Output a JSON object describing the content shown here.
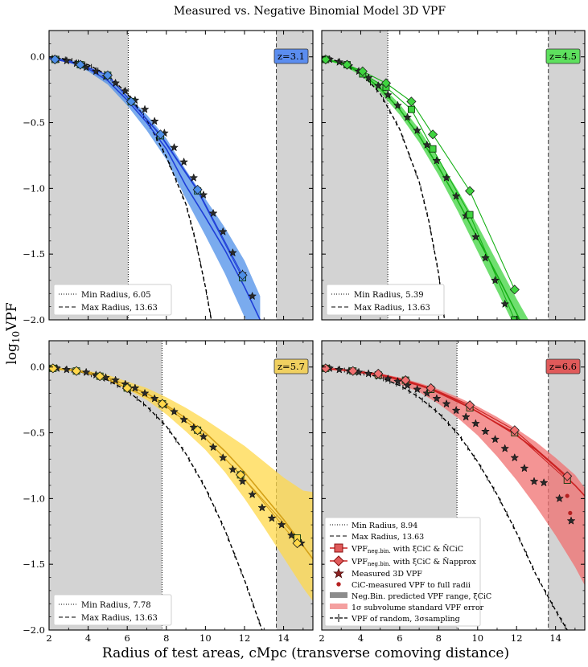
{
  "figure": {
    "title": "Measured vs. Negative Binomial Model 3D VPF",
    "xlabel": "Radius of test areas, cMpc (transverse comoving distance)",
    "ylabel_main": "log",
    "ylabel_sub": "10",
    "ylabel_tail": "VPF"
  },
  "legend_full": {
    "min_label": "Min Radius, 8.94",
    "max_label": "Max Radius, 13.63",
    "negbin_cic_main": "VPF",
    "negbin_cic_sub": "neg.bin.",
    "negbin_cic_tail": " with ξ̄CiC & N̄CiC",
    "negbin_approx_main": "VPF",
    "negbin_approx_sub": "neg.bin.",
    "negbin_approx_tail": " with ξ̄CiC & N̄approx",
    "measured": "Measured 3D VPF",
    "cic_full": "CiC-measured VPF to full radii",
    "range": "Neg.Bin. predicted VPF range, ξ̄CiC",
    "subvol": "1σ subvolume standard VPF error",
    "random": "VPF of random, 3σsampling"
  },
  "colors": {
    "z3.1": "#1f3fd8",
    "z3.1_fill": "#4d8fe8",
    "z3.1_label": "#5b8def",
    "z4.5": "#16b016",
    "z4.5_fill": "#3fd43f",
    "z4.5_label": "#5ee05e",
    "z5.7": "#d4a017",
    "z5.7_fill": "#ffd84a",
    "z5.7_label": "#f0d060",
    "z6.6": "#cc2222",
    "z6.6_fill": "#f07070",
    "z6.6_label": "#e05a5a",
    "shade": "#d3d3d3"
  },
  "chart_data": [
    {
      "type": "line",
      "panel": "top-left",
      "redshift_label": "z=3.1",
      "xlim": [
        2,
        15.5
      ],
      "ylim": [
        -2.0,
        0.2
      ],
      "xticks": [
        "2",
        "4",
        "6",
        "8",
        "10",
        "12",
        "14"
      ],
      "yticks": [
        "0.0",
        "−0.5",
        "−1.0",
        "−1.5",
        "−2.0"
      ],
      "min_radius": 6.05,
      "max_radius": 13.63,
      "legend": {
        "min_label": "Min Radius, 6.05",
        "max_label": "Max Radius, 13.63"
      },
      "show_left_ticks": true,
      "show_bottom_ticks": false,
      "random_curve": {
        "x": [
          2,
          3,
          4,
          5,
          6,
          7,
          8,
          9,
          9.5,
          10,
          10.3
        ],
        "y": [
          0,
          -0.02,
          -0.06,
          -0.14,
          -0.28,
          -0.48,
          -0.76,
          -1.12,
          -1.4,
          -1.75,
          -2.0
        ]
      },
      "model_line": {
        "x": [
          2,
          3,
          4,
          5,
          6,
          7,
          8,
          9,
          10,
          11,
          12,
          12.8
        ],
        "y": [
          -0.01,
          -0.03,
          -0.09,
          -0.18,
          -0.33,
          -0.5,
          -0.7,
          -0.98,
          -1.22,
          -1.47,
          -1.75,
          -2.0
        ]
      },
      "band_upper": [
        0,
        -0.02,
        -0.07,
        -0.15,
        -0.29,
        -0.44,
        -0.62,
        -0.86,
        -1.08,
        -1.3,
        -1.55,
        -1.82
      ],
      "band_lower": [
        -0.02,
        -0.04,
        -0.11,
        -0.21,
        -0.37,
        -0.56,
        -0.78,
        -1.08,
        -1.36,
        -1.65,
        -1.98,
        -2.2
      ],
      "squares": {
        "x": [
          2.3,
          3.6,
          5.0,
          6.2,
          7.7,
          9.6,
          11.9
        ],
        "y": [
          -0.02,
          -0.06,
          -0.14,
          -0.34,
          -0.6,
          -1.02,
          -1.68
        ]
      },
      "diamonds": {
        "x": [
          2.3,
          3.6,
          5.0,
          6.2,
          7.7,
          9.6,
          11.9
        ],
        "y": [
          -0.02,
          -0.06,
          -0.14,
          -0.34,
          -0.59,
          -1.01,
          -1.66
        ]
      },
      "stars": {
        "x": [
          2.4,
          2.9,
          3.4,
          3.9,
          4.4,
          4.9,
          5.4,
          5.9,
          6.4,
          6.9,
          7.4,
          7.9,
          8.4,
          8.9,
          9.4,
          9.9,
          10.4,
          10.9,
          11.4,
          11.9,
          12.4
        ],
        "y": [
          -0.02,
          -0.03,
          -0.05,
          -0.08,
          -0.11,
          -0.15,
          -0.2,
          -0.26,
          -0.33,
          -0.4,
          -0.49,
          -0.58,
          -0.69,
          -0.8,
          -0.92,
          -1.05,
          -1.19,
          -1.33,
          -1.49,
          -1.65,
          -1.82
        ]
      },
      "cic_points": {
        "x": [],
        "y": []
      }
    },
    {
      "type": "line",
      "panel": "top-right",
      "redshift_label": "z=4.5",
      "xlim": [
        2,
        15.5
      ],
      "ylim": [
        -2.0,
        0.2
      ],
      "xticks": [
        "2",
        "4",
        "6",
        "8",
        "10",
        "12",
        "14"
      ],
      "yticks": [
        "0.0",
        "−0.5",
        "−1.0",
        "−1.5",
        "−2.0"
      ],
      "min_radius": 5.39,
      "max_radius": 13.63,
      "legend": {
        "min_label": "Min Radius, 5.39",
        "max_label": "Max Radius, 13.63"
      },
      "show_left_ticks": false,
      "show_bottom_ticks": false,
      "random_curve": {
        "x": [
          2,
          3,
          4,
          5,
          6,
          7,
          7.5,
          8,
          8.3
        ],
        "y": [
          0,
          -0.04,
          -0.12,
          -0.28,
          -0.55,
          -0.95,
          -1.25,
          -1.65,
          -2.0
        ]
      },
      "model_line": {
        "x": [
          2,
          3,
          4,
          5,
          6,
          7,
          8,
          9,
          10,
          11,
          12,
          13
        ],
        "y": [
          -0.01,
          -0.05,
          -0.12,
          -0.24,
          -0.4,
          -0.6,
          -0.84,
          -1.1,
          -1.38,
          -1.66,
          -1.95,
          -2.25
        ]
      },
      "band_upper": [
        0,
        -0.04,
        -0.1,
        -0.21,
        -0.36,
        -0.55,
        -0.78,
        -1.02,
        -1.28,
        -1.56,
        -1.84,
        -2.1
      ],
      "band_lower": [
        -0.02,
        -0.06,
        -0.14,
        -0.27,
        -0.44,
        -0.65,
        -0.9,
        -1.18,
        -1.48,
        -1.78,
        -2.08,
        -2.4
      ],
      "squares": {
        "x": [
          2.2,
          3.3,
          4.1,
          5.3,
          6.6,
          7.7,
          9.6,
          11.9
        ],
        "y": [
          -0.02,
          -0.06,
          -0.13,
          -0.23,
          -0.4,
          -0.7,
          -1.2,
          -2.0
        ]
      },
      "diamonds": {
        "x": [
          2.2,
          3.3,
          4.1,
          5.3,
          6.6,
          7.7,
          9.6,
          11.9
        ],
        "y": [
          -0.02,
          -0.06,
          -0.11,
          -0.2,
          -0.34,
          -0.59,
          -1.02,
          -1.77
        ]
      },
      "stars": {
        "x": [
          2.4,
          2.9,
          3.4,
          3.9,
          4.4,
          4.9,
          5.4,
          5.9,
          6.4,
          6.9,
          7.4,
          7.9,
          8.4,
          8.9,
          9.4,
          9.9,
          10.4,
          10.9,
          11.4,
          11.9
        ],
        "y": [
          -0.02,
          -0.04,
          -0.07,
          -0.11,
          -0.16,
          -0.22,
          -0.29,
          -0.37,
          -0.46,
          -0.56,
          -0.67,
          -0.79,
          -0.92,
          -1.06,
          -1.21,
          -1.37,
          -1.53,
          -1.7,
          -1.88,
          -2.0
        ]
      },
      "cic_points": {
        "x": [],
        "y": []
      }
    },
    {
      "type": "line",
      "panel": "bottom-left",
      "redshift_label": "z=5.7",
      "xlim": [
        2,
        15.5
      ],
      "ylim": [
        -2.0,
        0.2
      ],
      "xticks": [
        "2",
        "4",
        "6",
        "8",
        "10",
        "12",
        "14"
      ],
      "yticks": [
        "0.0",
        "−0.5",
        "−1.0",
        "−1.5",
        "−2.0"
      ],
      "min_radius": 7.78,
      "max_radius": 13.63,
      "legend": {
        "min_label": "Min Radius, 7.78",
        "max_label": "Max Radius, 13.63"
      },
      "show_left_ticks": true,
      "show_bottom_ticks": true,
      "random_curve": {
        "x": [
          2,
          3,
          4,
          5,
          6,
          7,
          8,
          9,
          10,
          11,
          12,
          12.9
        ],
        "y": [
          0,
          -0.02,
          -0.05,
          -0.1,
          -0.18,
          -0.3,
          -0.45,
          -0.66,
          -0.92,
          -1.24,
          -1.62,
          -2.0
        ]
      },
      "model_line": {
        "x": [
          2,
          3,
          4,
          5,
          6,
          7,
          8,
          9,
          10,
          11,
          12,
          13,
          14,
          15,
          15.5
        ],
        "y": [
          -0.01,
          -0.02,
          -0.04,
          -0.08,
          -0.14,
          -0.2,
          -0.29,
          -0.39,
          -0.5,
          -0.64,
          -0.8,
          -0.98,
          -1.16,
          -1.36,
          -1.46
        ]
      },
      "band_upper": [
        0,
        -0.01,
        -0.03,
        -0.06,
        -0.11,
        -0.16,
        -0.23,
        -0.31,
        -0.4,
        -0.5,
        -0.6,
        -0.72,
        -0.84,
        -0.94,
        -0.95
      ],
      "band_lower": [
        -0.02,
        -0.03,
        -0.05,
        -0.1,
        -0.17,
        -0.25,
        -0.36,
        -0.49,
        -0.63,
        -0.8,
        -1.0,
        -1.22,
        -1.45,
        -1.68,
        -1.78
      ],
      "squares": {
        "x": [
          2.2,
          3.4,
          4.6,
          6.0,
          7.8,
          9.6,
          11.8,
          14.7
        ],
        "y": [
          -0.01,
          -0.03,
          -0.07,
          -0.16,
          -0.28,
          -0.48,
          -0.82,
          -1.3
        ]
      },
      "diamonds": {
        "x": [
          2.2,
          3.4,
          4.6,
          6.0,
          7.8,
          9.6,
          11.8,
          14.7
        ],
        "y": [
          -0.01,
          -0.03,
          -0.07,
          -0.16,
          -0.28,
          -0.48,
          -0.82,
          -1.34
        ]
      },
      "stars": {
        "x": [
          2.4,
          2.9,
          3.4,
          3.9,
          4.4,
          4.9,
          5.4,
          5.9,
          6.4,
          6.9,
          7.4,
          7.9,
          8.4,
          8.9,
          9.4,
          9.9,
          10.4,
          10.9,
          11.4,
          11.9,
          12.4,
          12.9,
          13.4,
          13.9,
          14.4,
          14.9
        ],
        "y": [
          -0.01,
          -0.02,
          -0.03,
          -0.04,
          -0.06,
          -0.08,
          -0.1,
          -0.13,
          -0.16,
          -0.2,
          -0.24,
          -0.29,
          -0.34,
          -0.4,
          -0.46,
          -0.53,
          -0.61,
          -0.69,
          -0.78,
          -0.87,
          -0.97,
          -1.07,
          -1.15,
          -1.2,
          -1.28,
          -1.34
        ]
      },
      "cic_points": {
        "x": [],
        "y": []
      }
    },
    {
      "type": "line",
      "panel": "bottom-right",
      "redshift_label": "z=6.6",
      "xlim": [
        2,
        15.5
      ],
      "ylim": [
        -2.0,
        0.2
      ],
      "xticks": [
        "2",
        "4",
        "6",
        "8",
        "10",
        "12",
        "14"
      ],
      "yticks": [
        "0.0",
        "−0.5",
        "−1.0",
        "−1.5",
        "−2.0"
      ],
      "min_radius": 8.94,
      "max_radius": 13.63,
      "legend": null,
      "show_left_ticks": false,
      "show_bottom_ticks": true,
      "random_curve": {
        "x": [
          2,
          3,
          4,
          5,
          6,
          7,
          8,
          9,
          10,
          11,
          12,
          13,
          14,
          14.6
        ],
        "y": [
          0,
          -0.02,
          -0.04,
          -0.08,
          -0.14,
          -0.23,
          -0.35,
          -0.51,
          -0.72,
          -0.97,
          -1.26,
          -1.58,
          -1.85,
          -2.0
        ]
      },
      "model_line": {
        "x": [
          2,
          3,
          4,
          5,
          6,
          7,
          8,
          9,
          10,
          11,
          12,
          13,
          14,
          15,
          15.5
        ],
        "y": [
          -0.01,
          -0.02,
          -0.04,
          -0.06,
          -0.1,
          -0.14,
          -0.19,
          -0.26,
          -0.34,
          -0.43,
          -0.52,
          -0.63,
          -0.76,
          -0.9,
          -0.98
        ]
      },
      "band_upper": [
        0,
        -0.01,
        -0.03,
        -0.05,
        -0.08,
        -0.12,
        -0.17,
        -0.23,
        -0.3,
        -0.38,
        -0.47,
        -0.57,
        -0.69,
        -0.82,
        -0.92
      ],
      "band_lower": [
        -0.02,
        -0.03,
        -0.05,
        -0.08,
        -0.13,
        -0.19,
        -0.28,
        -0.39,
        -0.52,
        -0.68,
        -0.86,
        -1.06,
        -1.28,
        -1.52,
        -1.66
      ],
      "squares": {
        "x": [
          2.2,
          3.6,
          4.9,
          6.3,
          7.6,
          9.6,
          11.9,
          14.6
        ],
        "y": [
          -0.01,
          -0.03,
          -0.06,
          -0.1,
          -0.17,
          -0.31,
          -0.5,
          -0.86
        ]
      },
      "diamonds": {
        "x": [
          2.2,
          3.6,
          4.9,
          6.3,
          7.6,
          9.6,
          11.9,
          14.6
        ],
        "y": [
          -0.01,
          -0.03,
          -0.05,
          -0.1,
          -0.16,
          -0.29,
          -0.48,
          -0.83
        ]
      },
      "stars": {
        "x": [
          2.4,
          2.9,
          3.4,
          3.9,
          4.4,
          4.9,
          5.4,
          5.9,
          6.4,
          6.9,
          7.4,
          7.9,
          8.4,
          8.9,
          9.4,
          9.9,
          10.4,
          10.9,
          11.4,
          11.9,
          12.4,
          12.9,
          13.4,
          14.2,
          14.8
        ],
        "y": [
          -0.01,
          -0.02,
          -0.03,
          -0.04,
          -0.05,
          -0.07,
          -0.09,
          -0.11,
          -0.14,
          -0.17,
          -0.2,
          -0.24,
          -0.28,
          -0.33,
          -0.38,
          -0.43,
          -0.49,
          -0.55,
          -0.62,
          -0.69,
          -0.77,
          -0.87,
          -0.88,
          -1.0,
          -1.17
        ]
      },
      "cic_points": {
        "x": [
          14.6,
          14.75
        ],
        "y": [
          -0.98,
          -1.11
        ]
      }
    }
  ]
}
